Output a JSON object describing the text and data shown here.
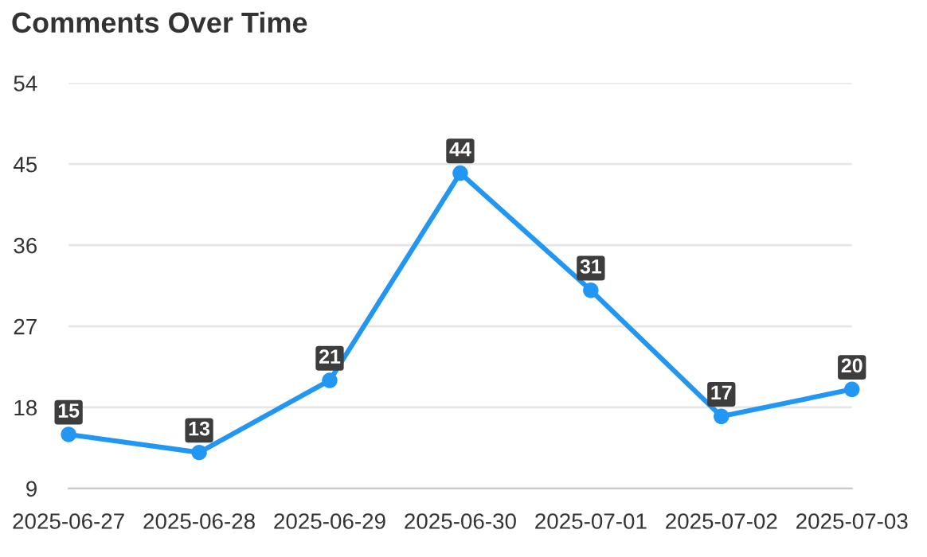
{
  "chart_data": {
    "type": "line",
    "title": "Comments Over Time",
    "categories": [
      "2025-06-27",
      "2025-06-28",
      "2025-06-29",
      "2025-06-30",
      "2025-07-01",
      "2025-07-02",
      "2025-07-03"
    ],
    "series": [
      {
        "color": "#2196f3",
        "values": [
          15,
          13,
          21,
          44,
          31,
          17,
          20
        ]
      }
    ],
    "ylim": [
      9,
      54
    ],
    "yticks": [
      9,
      18,
      27,
      36,
      45,
      54
    ],
    "grid": "y",
    "marker": "circle",
    "line_style": "solid",
    "data_labels": true
  }
}
